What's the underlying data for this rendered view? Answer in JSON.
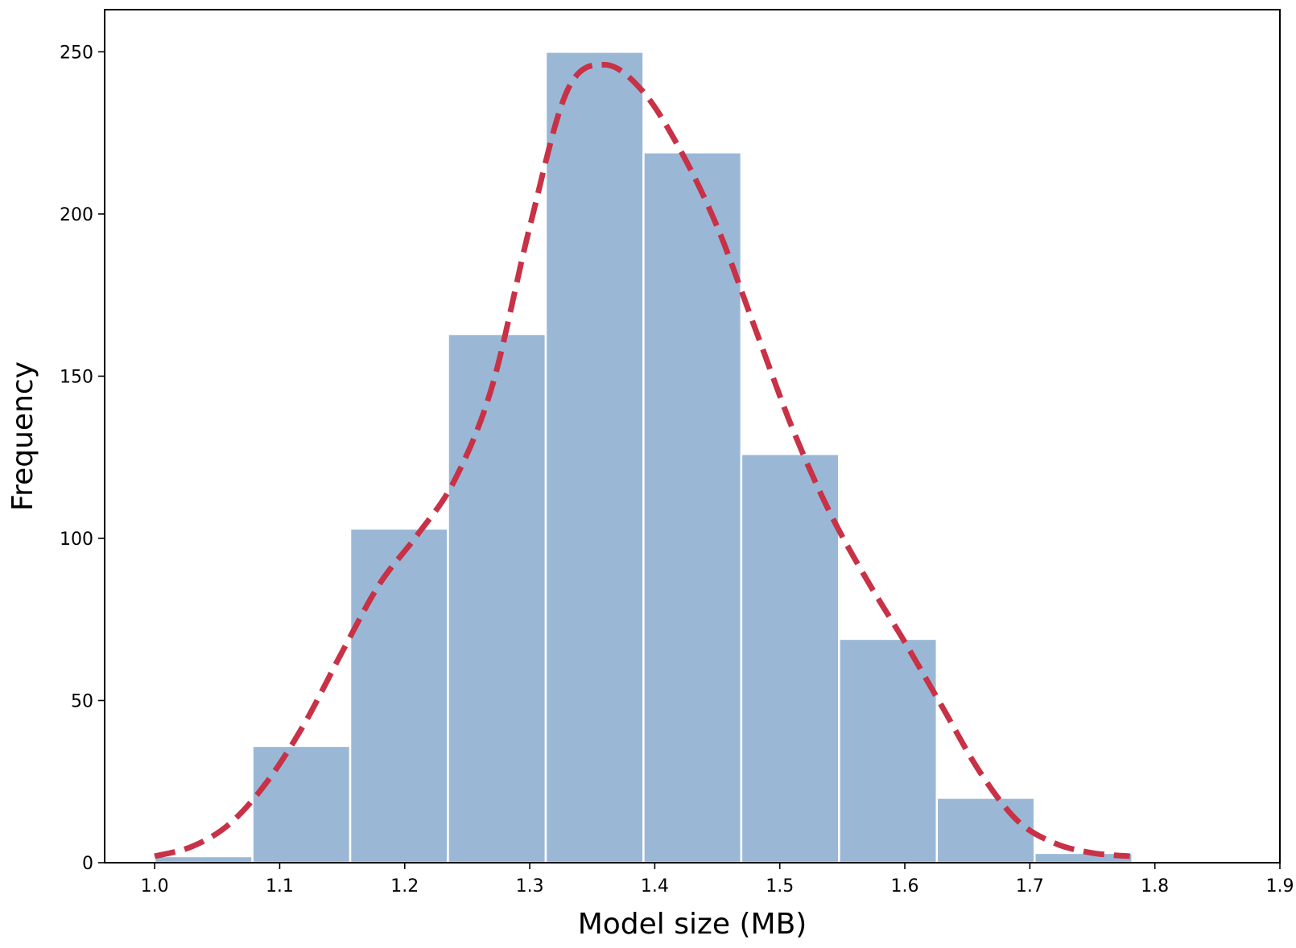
{
  "chart_data": {
    "type": "bar",
    "xlabel": "Model size (MB)",
    "ylabel": "Frequency",
    "xlim": [
      0.96,
      1.9
    ],
    "ylim": [
      0,
      263
    ],
    "x_ticks": [
      1.0,
      1.1,
      1.2,
      1.3,
      1.4,
      1.5,
      1.6,
      1.7,
      1.8,
      1.9
    ],
    "x_tick_labels": [
      "1.0",
      "1.1",
      "1.2",
      "1.3",
      "1.4",
      "1.5",
      "1.6",
      "1.7",
      "1.8",
      "1.9"
    ],
    "y_ticks": [
      0,
      50,
      100,
      150,
      200,
      250
    ],
    "y_tick_labels": [
      "0",
      "50",
      "100",
      "150",
      "200",
      "250"
    ],
    "bin_edges": [
      1.0,
      1.0782,
      1.1564,
      1.2346,
      1.3128,
      1.391,
      1.4692,
      1.5474,
      1.6256,
      1.7038,
      1.782
    ],
    "values": [
      2,
      36,
      103,
      163,
      250,
      219,
      126,
      69,
      20,
      3
    ],
    "bar_color": "#9ab8d6",
    "bar_edge_color": "#ffffff",
    "grid": false,
    "density_curve": {
      "style": "dashed",
      "color": "#c83146",
      "points": [
        [
          1.0,
          2
        ],
        [
          1.03,
          5
        ],
        [
          1.06,
          12
        ],
        [
          1.09,
          25
        ],
        [
          1.12,
          43
        ],
        [
          1.15,
          65
        ],
        [
          1.18,
          86
        ],
        [
          1.21,
          101
        ],
        [
          1.24,
          118
        ],
        [
          1.27,
          147
        ],
        [
          1.3,
          196
        ],
        [
          1.33,
          238
        ],
        [
          1.36,
          246
        ],
        [
          1.39,
          238
        ],
        [
          1.42,
          220
        ],
        [
          1.45,
          196
        ],
        [
          1.48,
          165
        ],
        [
          1.51,
          134
        ],
        [
          1.54,
          108
        ],
        [
          1.57,
          87
        ],
        [
          1.6,
          68
        ],
        [
          1.63,
          48
        ],
        [
          1.66,
          28
        ],
        [
          1.69,
          13
        ],
        [
          1.72,
          6
        ],
        [
          1.75,
          3
        ],
        [
          1.78,
          2
        ]
      ]
    }
  }
}
